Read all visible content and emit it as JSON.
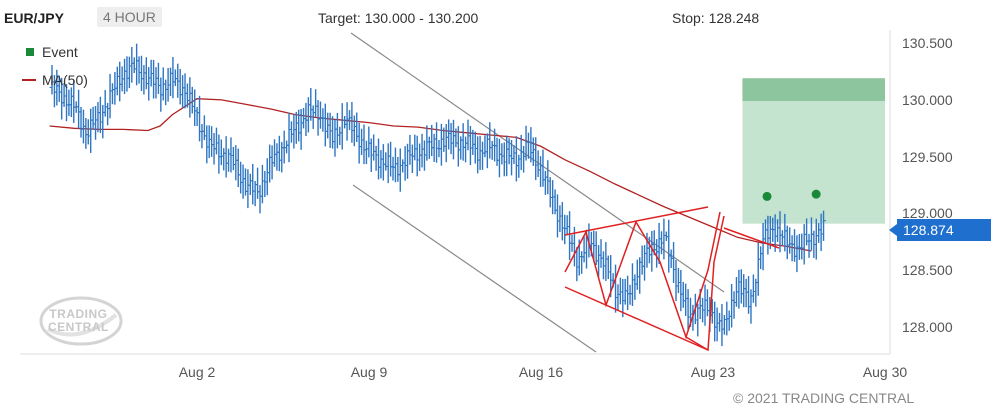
{
  "header": {
    "symbol": "EUR/JPY",
    "timeframe": "4 HOUR",
    "target": "Target: 130.000 - 130.200",
    "stop": "Stop: 128.248"
  },
  "legend": {
    "event_label": "Event",
    "ma_label": "MA(50)"
  },
  "colors": {
    "candle": "#2e75c2",
    "ma": "#b22222",
    "pattern": "#e02020",
    "channel": "#8a8a8a",
    "target_zone": "#c5e4cf",
    "target_band": "#8cc59e",
    "event": "#1a8a3a",
    "price_tag": "#1f6fcf"
  },
  "price_tag": "128.874",
  "copyright": "© 2021 TRADING CENTRAL",
  "logo_text": [
    "TRADING",
    "CENTRAL"
  ],
  "chart_data": {
    "type": "line",
    "instrument": "EUR/JPY",
    "timeframe": "4 HOUR",
    "x_tick_labels": [
      "Aug 2",
      "Aug 9",
      "Aug 16",
      "Aug 23",
      "Aug 30"
    ],
    "y_tick_labels": [
      "128.000",
      "128.500",
      "129.000",
      "129.500",
      "130.000",
      "130.500"
    ],
    "ylim": [
      127.75,
      130.6
    ],
    "last_price": 128.874,
    "target_range": [
      130.0,
      130.2
    ],
    "stop": 128.248,
    "series": [
      {
        "name": "MA(50)",
        "x_days": [
          -6,
          -5,
          -4,
          -3,
          -2,
          -1.5,
          -1,
          0,
          1,
          2,
          3,
          4,
          5,
          6,
          7,
          8,
          9,
          10,
          11,
          12,
          13,
          14,
          15,
          16,
          17,
          18,
          19,
          20,
          21,
          22,
          23,
          24,
          25
        ],
        "values": [
          129.78,
          129.76,
          129.75,
          129.75,
          129.74,
          129.78,
          129.88,
          130.02,
          130.01,
          129.97,
          129.93,
          129.88,
          129.85,
          129.83,
          129.81,
          129.78,
          129.77,
          129.74,
          129.72,
          129.7,
          129.68,
          129.6,
          129.48,
          129.38,
          129.27,
          129.17,
          129.07,
          128.98,
          128.89,
          128.8,
          128.75,
          128.72,
          128.68
        ]
      },
      {
        "name": "EUR/JPY",
        "x_days": [
          -6,
          -5.5,
          -5,
          -4.5,
          -4,
          -3.5,
          -3,
          -2.5,
          -2,
          -1.5,
          -1,
          -0.5,
          0,
          0.5,
          1,
          1.5,
          2,
          2.5,
          3,
          3.5,
          4,
          4.5,
          5,
          5.5,
          6,
          6.5,
          7,
          7.5,
          8,
          8.5,
          9,
          9.5,
          10,
          10.5,
          11,
          11.5,
          12,
          12.5,
          13,
          13.5,
          14,
          14.5,
          15,
          15.5,
          16,
          16.5,
          17,
          17.5,
          18,
          18.5,
          19,
          19.5,
          20,
          20.5,
          21,
          21.5,
          22,
          22.5,
          23,
          23.5,
          24,
          24.5,
          25,
          25.5
        ],
        "values": [
          130.12,
          130.05,
          129.95,
          129.72,
          129.85,
          130.05,
          130.25,
          130.3,
          130.2,
          130.12,
          130.18,
          130.1,
          129.85,
          129.6,
          129.55,
          129.45,
          129.25,
          129.2,
          129.45,
          129.6,
          129.75,
          129.9,
          129.9,
          129.65,
          129.85,
          129.7,
          129.55,
          129.48,
          129.4,
          129.48,
          129.55,
          129.6,
          129.65,
          129.65,
          129.62,
          129.55,
          129.6,
          129.5,
          129.5,
          129.6,
          129.4,
          129.1,
          128.85,
          128.6,
          128.75,
          128.6,
          128.35,
          128.25,
          128.55,
          128.7,
          128.8,
          128.45,
          128.1,
          128.2,
          128.1,
          128.0,
          128.4,
          128.2,
          128.75,
          128.9,
          128.75,
          128.7,
          128.8,
          128.874
        ]
      }
    ],
    "events": [
      {
        "x_day": 23.2,
        "value": 129.16
      },
      {
        "x_day": 25.2,
        "value": 129.18
      }
    ]
  }
}
